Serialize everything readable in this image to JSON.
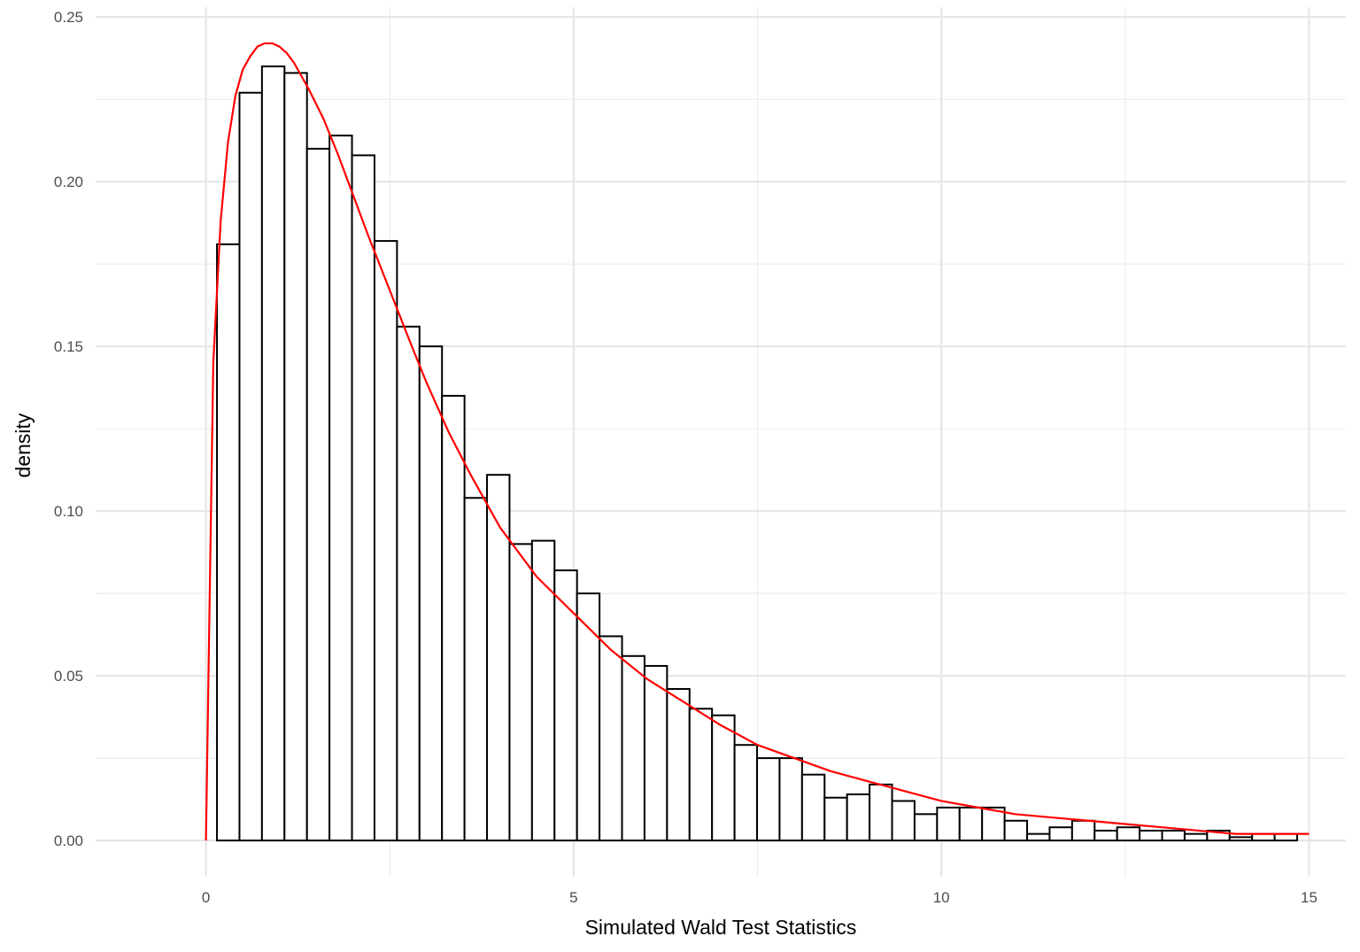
{
  "chart_data": {
    "type": "bar",
    "title": "",
    "xlabel": "Simulated Wald Test Statistics",
    "ylabel": "density",
    "xlim": [
      -1.5,
      15.5
    ],
    "ylim": [
      -0.011,
      0.253
    ],
    "grid": true,
    "x_ticks": [
      0,
      5,
      10,
      15
    ],
    "x_tick_labels": [
      "0",
      "5",
      "10",
      "15"
    ],
    "y_ticks": [
      0,
      0.05,
      0.1,
      0.15,
      0.2,
      0.25
    ],
    "y_tick_labels": [
      "0.00",
      "0.05",
      "0.10",
      "0.15",
      "0.20",
      "0.25"
    ],
    "histogram": {
      "bin_start": 0.15,
      "bin_width": 0.306,
      "values": [
        0.181,
        0.227,
        0.235,
        0.233,
        0.21,
        0.214,
        0.208,
        0.182,
        0.156,
        0.15,
        0.135,
        0.104,
        0.111,
        0.09,
        0.091,
        0.082,
        0.075,
        0.062,
        0.056,
        0.053,
        0.046,
        0.04,
        0.038,
        0.029,
        0.025,
        0.025,
        0.02,
        0.013,
        0.014,
        0.017,
        0.012,
        0.008,
        0.01,
        0.01,
        0.01,
        0.006,
        0.002,
        0.004,
        0.006,
        0.003,
        0.004,
        0.003,
        0.003,
        0.002,
        0.003,
        0.001,
        0.002,
        0.002
      ],
      "fill": "#ffffff",
      "stroke": "#000000"
    },
    "density_curve": {
      "name": "",
      "color": "#ff0000",
      "x": [
        0,
        0.1,
        0.2,
        0.3,
        0.4,
        0.5,
        0.6,
        0.7,
        0.8,
        0.9,
        1.0,
        1.1,
        1.2,
        1.3,
        1.4,
        1.6,
        1.8,
        2.0,
        2.2,
        2.5,
        2.8,
        3.0,
        3.3,
        3.6,
        4.0,
        4.5,
        5.0,
        5.5,
        6.0,
        6.5,
        7.0,
        7.5,
        8.0,
        8.5,
        9.0,
        9.5,
        10.0,
        10.5,
        11.0,
        11.5,
        12.0,
        12.5,
        13.0,
        13.5,
        14.0,
        14.5,
        15.0
      ],
      "y": [
        0.0,
        0.145,
        0.188,
        0.212,
        0.226,
        0.234,
        0.238,
        0.241,
        0.242,
        0.242,
        0.241,
        0.239,
        0.236,
        0.232,
        0.228,
        0.219,
        0.208,
        0.196,
        0.184,
        0.167,
        0.15,
        0.139,
        0.124,
        0.111,
        0.095,
        0.08,
        0.069,
        0.058,
        0.049,
        0.042,
        0.035,
        0.029,
        0.025,
        0.021,
        0.018,
        0.015,
        0.012,
        0.01,
        0.008,
        0.007,
        0.006,
        0.005,
        0.004,
        0.003,
        0.002,
        0.002,
        0.002
      ]
    }
  }
}
